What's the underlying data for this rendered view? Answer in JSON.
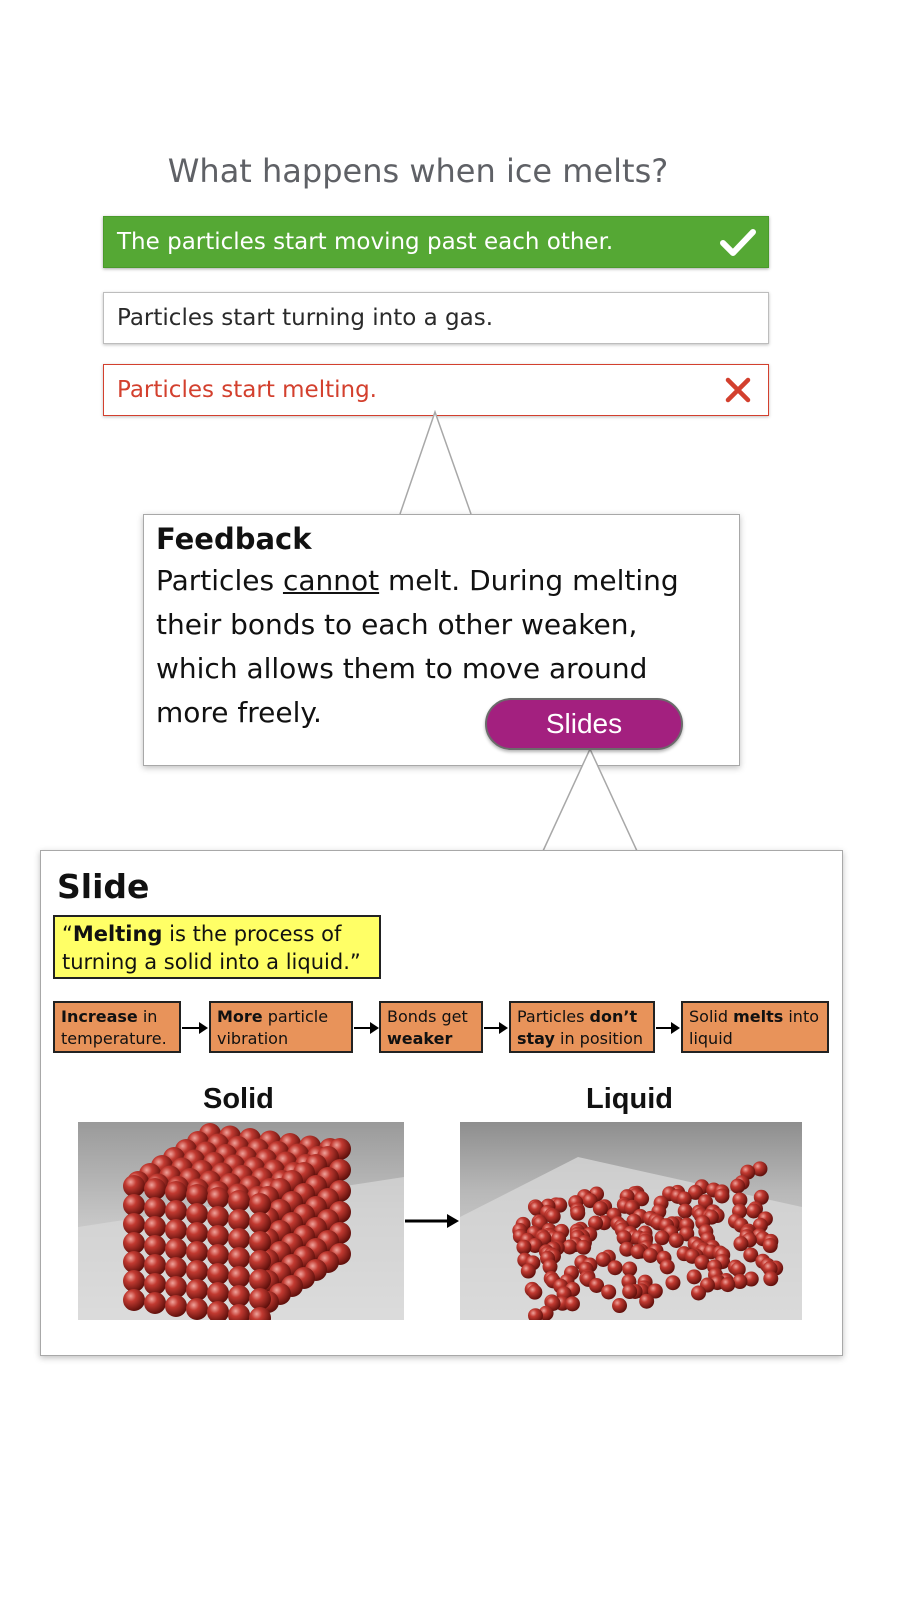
{
  "question": "What happens when ice melts?",
  "options": [
    {
      "label": "The particles start moving past each other.",
      "state": "correct",
      "icon": "check-icon"
    },
    {
      "label": "Particles start turning into a gas.",
      "state": "neutral"
    },
    {
      "label": "Particles start melting.",
      "state": "wrong",
      "icon": "cross-icon"
    }
  ],
  "feedback": {
    "title": "Feedback",
    "text_before": "Particles ",
    "text_emph": "cannot",
    "text_after": " melt. During melting their bonds to each other weaken, which allows them to move around more freely."
  },
  "slides_button": "Slides",
  "slide": {
    "title": "Slide",
    "definition": {
      "open_quote": "“",
      "term": "Melting",
      "rest": " is the process of turning a solid into a liquid.”"
    },
    "steps": [
      {
        "bold": "Increase",
        "text": " in temperature."
      },
      {
        "bold": "More",
        "text": " particle vibration"
      },
      {
        "pre": "Bonds get ",
        "bold": "weaker"
      },
      {
        "pre": "Particles ",
        "bold": "don’t stay",
        "text": " in position"
      },
      {
        "pre": "Solid ",
        "bold": "melts",
        "text": " into liquid"
      }
    ],
    "solid_label": "Solid",
    "liquid_label": "Liquid"
  },
  "colors": {
    "correct": "#55a834",
    "wrong": "#d3402e",
    "slides_button": "#a3207f",
    "definition_bg": "#ffff66",
    "step_bg": "#e8935a",
    "particle": "#b52a22"
  }
}
